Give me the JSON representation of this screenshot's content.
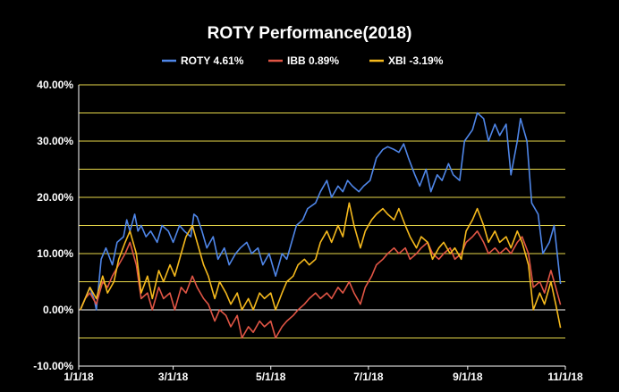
{
  "chart_data": {
    "type": "line",
    "title": "ROTY Performance(2018)",
    "xlabel": "",
    "ylabel": "",
    "x_range": [
      "2018-01-01",
      "2018-11-01"
    ],
    "x_ticks": [
      "1/1/18",
      "3/1/18",
      "5/1/18",
      "7/1/18",
      "9/1/18",
      "11/1/18"
    ],
    "ylim": [
      -0.1,
      0.4
    ],
    "y_ticks": [
      "-10.00%",
      "0.00%",
      "10.00%",
      "20.00%",
      "30.00%",
      "40.00%"
    ],
    "gridlines": "horizontal every 5%",
    "gridline_color": "#e8d84a",
    "background": "#000000",
    "legend_position": "top-center",
    "series": [
      {
        "name": "ROTY 4.61%",
        "color": "#4f86e8",
        "points": [
          [
            "2018-01-02",
            0.0
          ],
          [
            "2018-01-05",
            0.02
          ],
          [
            "2018-01-08",
            0.04
          ],
          [
            "2018-01-11",
            0.015
          ],
          [
            "2018-01-12",
            0.0
          ],
          [
            "2018-01-15",
            0.09
          ],
          [
            "2018-01-18",
            0.11
          ],
          [
            "2018-01-22",
            0.08
          ],
          [
            "2018-01-25",
            0.12
          ],
          [
            "2018-01-29",
            0.13
          ],
          [
            "2018-01-31",
            0.16
          ],
          [
            "2018-02-02",
            0.14
          ],
          [
            "2018-02-05",
            0.17
          ],
          [
            "2018-02-07",
            0.14
          ],
          [
            "2018-02-09",
            0.15
          ],
          [
            "2018-02-12",
            0.13
          ],
          [
            "2018-02-15",
            0.14
          ],
          [
            "2018-02-19",
            0.12
          ],
          [
            "2018-02-22",
            0.15
          ],
          [
            "2018-02-26",
            0.14
          ],
          [
            "2018-03-01",
            0.12
          ],
          [
            "2018-03-05",
            0.15
          ],
          [
            "2018-03-08",
            0.14
          ],
          [
            "2018-03-12",
            0.13
          ],
          [
            "2018-03-14",
            0.17
          ],
          [
            "2018-03-16",
            0.165
          ],
          [
            "2018-03-19",
            0.14
          ],
          [
            "2018-03-22",
            0.11
          ],
          [
            "2018-03-26",
            0.13
          ],
          [
            "2018-03-29",
            0.09
          ],
          [
            "2018-04-02",
            0.11
          ],
          [
            "2018-04-05",
            0.08
          ],
          [
            "2018-04-09",
            0.1
          ],
          [
            "2018-04-12",
            0.11
          ],
          [
            "2018-04-16",
            0.12
          ],
          [
            "2018-04-19",
            0.1
          ],
          [
            "2018-04-23",
            0.11
          ],
          [
            "2018-04-26",
            0.08
          ],
          [
            "2018-04-30",
            0.1
          ],
          [
            "2018-05-02",
            0.08
          ],
          [
            "2018-05-04",
            0.06
          ],
          [
            "2018-05-08",
            0.1
          ],
          [
            "2018-05-11",
            0.09
          ],
          [
            "2018-05-14",
            0.12
          ],
          [
            "2018-05-17",
            0.15
          ],
          [
            "2018-05-21",
            0.16
          ],
          [
            "2018-05-24",
            0.18
          ],
          [
            "2018-05-29",
            0.19
          ],
          [
            "2018-06-01",
            0.21
          ],
          [
            "2018-06-05",
            0.23
          ],
          [
            "2018-06-08",
            0.2
          ],
          [
            "2018-06-12",
            0.22
          ],
          [
            "2018-06-15",
            0.21
          ],
          [
            "2018-06-18",
            0.23
          ],
          [
            "2018-06-21",
            0.22
          ],
          [
            "2018-06-25",
            0.21
          ],
          [
            "2018-06-28",
            0.22
          ],
          [
            "2018-07-02",
            0.23
          ],
          [
            "2018-07-06",
            0.27
          ],
          [
            "2018-07-10",
            0.285
          ],
          [
            "2018-07-13",
            0.29
          ],
          [
            "2018-07-17",
            0.285
          ],
          [
            "2018-07-20",
            0.28
          ],
          [
            "2018-07-23",
            0.295
          ],
          [
            "2018-07-26",
            0.27
          ],
          [
            "2018-07-30",
            0.24
          ],
          [
            "2018-08-02",
            0.22
          ],
          [
            "2018-08-06",
            0.25
          ],
          [
            "2018-08-09",
            0.21
          ],
          [
            "2018-08-13",
            0.24
          ],
          [
            "2018-08-16",
            0.23
          ],
          [
            "2018-08-20",
            0.26
          ],
          [
            "2018-08-23",
            0.24
          ],
          [
            "2018-08-27",
            0.23
          ],
          [
            "2018-08-30",
            0.3
          ],
          [
            "2018-09-04",
            0.32
          ],
          [
            "2018-09-07",
            0.35
          ],
          [
            "2018-09-11",
            0.34
          ],
          [
            "2018-09-14",
            0.3
          ],
          [
            "2018-09-18",
            0.33
          ],
          [
            "2018-09-21",
            0.31
          ],
          [
            "2018-09-25",
            0.33
          ],
          [
            "2018-09-28",
            0.24
          ],
          [
            "2018-10-02",
            0.3
          ],
          [
            "2018-10-04",
            0.34
          ],
          [
            "2018-10-08",
            0.3
          ],
          [
            "2018-10-11",
            0.19
          ],
          [
            "2018-10-15",
            0.17
          ],
          [
            "2018-10-18",
            0.1
          ],
          [
            "2018-10-22",
            0.12
          ],
          [
            "2018-10-25",
            0.15
          ],
          [
            "2018-10-29",
            0.046
          ]
        ]
      },
      {
        "name": "IBB 0.89%",
        "color": "#e05545",
        "points": [
          [
            "2018-01-02",
            0.0
          ],
          [
            "2018-01-05",
            0.02
          ],
          [
            "2018-01-08",
            0.03
          ],
          [
            "2018-01-12",
            0.01
          ],
          [
            "2018-01-16",
            0.05
          ],
          [
            "2018-01-19",
            0.04
          ],
          [
            "2018-01-22",
            0.06
          ],
          [
            "2018-01-26",
            0.08
          ],
          [
            "2018-01-30",
            0.1
          ],
          [
            "2018-02-02",
            0.12
          ],
          [
            "2018-02-06",
            0.08
          ],
          [
            "2018-02-09",
            0.02
          ],
          [
            "2018-02-13",
            0.03
          ],
          [
            "2018-02-16",
            0.0
          ],
          [
            "2018-02-20",
            0.04
          ],
          [
            "2018-02-23",
            0.02
          ],
          [
            "2018-02-27",
            0.03
          ],
          [
            "2018-03-02",
            0.0
          ],
          [
            "2018-03-06",
            0.04
          ],
          [
            "2018-03-09",
            0.03
          ],
          [
            "2018-03-13",
            0.06
          ],
          [
            "2018-03-16",
            0.04
          ],
          [
            "2018-03-20",
            0.02
          ],
          [
            "2018-03-23",
            0.01
          ],
          [
            "2018-03-27",
            -0.02
          ],
          [
            "2018-03-30",
            0.0
          ],
          [
            "2018-04-03",
            -0.01
          ],
          [
            "2018-04-06",
            -0.03
          ],
          [
            "2018-04-10",
            -0.01
          ],
          [
            "2018-04-13",
            -0.05
          ],
          [
            "2018-04-17",
            -0.03
          ],
          [
            "2018-04-20",
            -0.04
          ],
          [
            "2018-04-24",
            -0.02
          ],
          [
            "2018-04-27",
            -0.03
          ],
          [
            "2018-05-01",
            -0.02
          ],
          [
            "2018-05-04",
            -0.05
          ],
          [
            "2018-05-08",
            -0.03
          ],
          [
            "2018-05-11",
            -0.02
          ],
          [
            "2018-05-15",
            -0.01
          ],
          [
            "2018-05-18",
            0.0
          ],
          [
            "2018-05-22",
            0.01
          ],
          [
            "2018-05-25",
            0.02
          ],
          [
            "2018-05-29",
            0.03
          ],
          [
            "2018-06-01",
            0.02
          ],
          [
            "2018-06-05",
            0.03
          ],
          [
            "2018-06-08",
            0.02
          ],
          [
            "2018-06-12",
            0.04
          ],
          [
            "2018-06-15",
            0.03
          ],
          [
            "2018-06-19",
            0.05
          ],
          [
            "2018-06-22",
            0.03
          ],
          [
            "2018-06-26",
            0.01
          ],
          [
            "2018-06-29",
            0.04
          ],
          [
            "2018-07-03",
            0.06
          ],
          [
            "2018-07-06",
            0.08
          ],
          [
            "2018-07-10",
            0.09
          ],
          [
            "2018-07-13",
            0.1
          ],
          [
            "2018-07-17",
            0.11
          ],
          [
            "2018-07-20",
            0.1
          ],
          [
            "2018-07-24",
            0.11
          ],
          [
            "2018-07-27",
            0.09
          ],
          [
            "2018-07-31",
            0.1
          ],
          [
            "2018-08-03",
            0.11
          ],
          [
            "2018-08-07",
            0.12
          ],
          [
            "2018-08-10",
            0.1
          ],
          [
            "2018-08-14",
            0.09
          ],
          [
            "2018-08-17",
            0.1
          ],
          [
            "2018-08-21",
            0.11
          ],
          [
            "2018-08-24",
            0.09
          ],
          [
            "2018-08-28",
            0.1
          ],
          [
            "2018-08-31",
            0.12
          ],
          [
            "2018-09-04",
            0.13
          ],
          [
            "2018-09-07",
            0.14
          ],
          [
            "2018-09-11",
            0.12
          ],
          [
            "2018-09-14",
            0.1
          ],
          [
            "2018-09-18",
            0.11
          ],
          [
            "2018-09-21",
            0.1
          ],
          [
            "2018-09-25",
            0.11
          ],
          [
            "2018-09-28",
            0.1
          ],
          [
            "2018-10-02",
            0.12
          ],
          [
            "2018-10-05",
            0.13
          ],
          [
            "2018-10-09",
            0.1
          ],
          [
            "2018-10-12",
            0.04
          ],
          [
            "2018-10-16",
            0.05
          ],
          [
            "2018-10-19",
            0.03
          ],
          [
            "2018-10-23",
            0.07
          ],
          [
            "2018-10-26",
            0.04
          ],
          [
            "2018-10-29",
            0.009
          ]
        ]
      },
      {
        "name": "XBI -3.19%",
        "color": "#f5b91d",
        "points": [
          [
            "2018-01-02",
            0.0
          ],
          [
            "2018-01-05",
            0.02
          ],
          [
            "2018-01-08",
            0.04
          ],
          [
            "2018-01-12",
            0.02
          ],
          [
            "2018-01-16",
            0.06
          ],
          [
            "2018-01-19",
            0.03
          ],
          [
            "2018-01-23",
            0.05
          ],
          [
            "2018-01-26",
            0.09
          ],
          [
            "2018-01-30",
            0.12
          ],
          [
            "2018-02-02",
            0.14
          ],
          [
            "2018-02-06",
            0.1
          ],
          [
            "2018-02-09",
            0.03
          ],
          [
            "2018-02-13",
            0.06
          ],
          [
            "2018-02-16",
            0.02
          ],
          [
            "2018-02-20",
            0.07
          ],
          [
            "2018-02-23",
            0.05
          ],
          [
            "2018-02-27",
            0.08
          ],
          [
            "2018-03-02",
            0.06
          ],
          [
            "2018-03-06",
            0.1
          ],
          [
            "2018-03-09",
            0.13
          ],
          [
            "2018-03-13",
            0.15
          ],
          [
            "2018-03-16",
            0.12
          ],
          [
            "2018-03-20",
            0.08
          ],
          [
            "2018-03-23",
            0.06
          ],
          [
            "2018-03-27",
            0.02
          ],
          [
            "2018-03-30",
            0.05
          ],
          [
            "2018-04-03",
            0.03
          ],
          [
            "2018-04-06",
            0.01
          ],
          [
            "2018-04-10",
            0.03
          ],
          [
            "2018-04-13",
            0.0
          ],
          [
            "2018-04-17",
            0.02
          ],
          [
            "2018-04-20",
            0.0
          ],
          [
            "2018-04-24",
            0.03
          ],
          [
            "2018-04-27",
            0.02
          ],
          [
            "2018-05-01",
            0.03
          ],
          [
            "2018-05-04",
            0.0
          ],
          [
            "2018-05-08",
            0.03
          ],
          [
            "2018-05-11",
            0.05
          ],
          [
            "2018-05-15",
            0.06
          ],
          [
            "2018-05-18",
            0.08
          ],
          [
            "2018-05-22",
            0.09
          ],
          [
            "2018-05-25",
            0.08
          ],
          [
            "2018-05-29",
            0.09
          ],
          [
            "2018-06-01",
            0.12
          ],
          [
            "2018-06-05",
            0.14
          ],
          [
            "2018-06-08",
            0.12
          ],
          [
            "2018-06-12",
            0.15
          ],
          [
            "2018-06-15",
            0.13
          ],
          [
            "2018-06-19",
            0.19
          ],
          [
            "2018-06-22",
            0.15
          ],
          [
            "2018-06-26",
            0.11
          ],
          [
            "2018-06-29",
            0.14
          ],
          [
            "2018-07-03",
            0.16
          ],
          [
            "2018-07-06",
            0.17
          ],
          [
            "2018-07-10",
            0.18
          ],
          [
            "2018-07-13",
            0.17
          ],
          [
            "2018-07-17",
            0.16
          ],
          [
            "2018-07-20",
            0.18
          ],
          [
            "2018-07-24",
            0.15
          ],
          [
            "2018-07-27",
            0.13
          ],
          [
            "2018-07-31",
            0.11
          ],
          [
            "2018-08-03",
            0.13
          ],
          [
            "2018-08-07",
            0.12
          ],
          [
            "2018-08-10",
            0.09
          ],
          [
            "2018-08-14",
            0.11
          ],
          [
            "2018-08-17",
            0.12
          ],
          [
            "2018-08-21",
            0.1
          ],
          [
            "2018-08-24",
            0.11
          ],
          [
            "2018-08-28",
            0.09
          ],
          [
            "2018-08-31",
            0.14
          ],
          [
            "2018-09-04",
            0.16
          ],
          [
            "2018-09-07",
            0.18
          ],
          [
            "2018-09-11",
            0.15
          ],
          [
            "2018-09-14",
            0.12
          ],
          [
            "2018-09-18",
            0.14
          ],
          [
            "2018-09-21",
            0.12
          ],
          [
            "2018-09-25",
            0.13
          ],
          [
            "2018-09-28",
            0.11
          ],
          [
            "2018-10-02",
            0.14
          ],
          [
            "2018-10-05",
            0.12
          ],
          [
            "2018-10-09",
            0.08
          ],
          [
            "2018-10-12",
            0.0
          ],
          [
            "2018-10-16",
            0.03
          ],
          [
            "2018-10-19",
            0.01
          ],
          [
            "2018-10-23",
            0.05
          ],
          [
            "2018-10-26",
            0.01
          ],
          [
            "2018-10-29",
            -0.032
          ]
        ]
      }
    ]
  }
}
